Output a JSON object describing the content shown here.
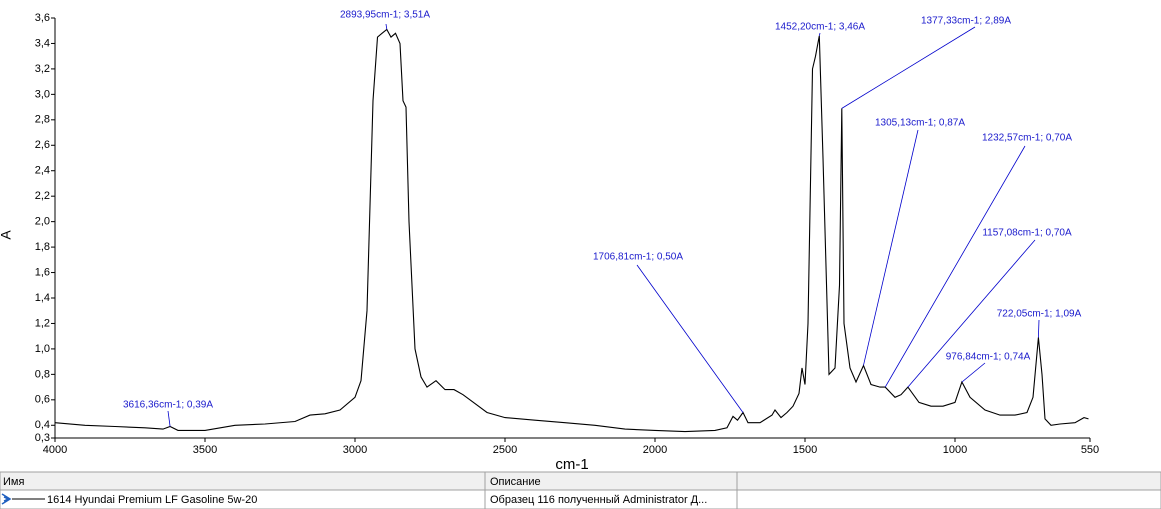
{
  "chart_data": {
    "type": "line",
    "xlabel": "cm-1",
    "ylabel": "A",
    "xlim": [
      4000,
      550
    ],
    "ylim": [
      0.3,
      3.6
    ],
    "xticks": [
      4000,
      3500,
      3000,
      2500,
      2000,
      1500,
      1000,
      550
    ],
    "yticks": [
      {
        "value": 0.3,
        "label": "0,3"
      },
      {
        "value": 0.4,
        "label": "0,4"
      },
      {
        "value": 0.6,
        "label": "0,6"
      },
      {
        "value": 0.8,
        "label": "0,8"
      },
      {
        "value": 1.0,
        "label": "1,0"
      },
      {
        "value": 1.2,
        "label": "1,2"
      },
      {
        "value": 1.4,
        "label": "1,4"
      },
      {
        "value": 1.6,
        "label": "1,6"
      },
      {
        "value": 1.8,
        "label": "1,8"
      },
      {
        "value": 2.0,
        "label": "2,0"
      },
      {
        "value": 2.2,
        "label": "2,2"
      },
      {
        "value": 2.4,
        "label": "2,4"
      },
      {
        "value": 2.6,
        "label": "2,6"
      },
      {
        "value": 2.8,
        "label": "2,8"
      },
      {
        "value": 3.0,
        "label": "3,0"
      },
      {
        "value": 3.2,
        "label": "3,2"
      },
      {
        "value": 3.4,
        "label": "3,4"
      },
      {
        "value": 3.6,
        "label": "3,6"
      }
    ],
    "x": [
      4000,
      3900,
      3800,
      3700,
      3640,
      3616.36,
      3590,
      3500,
      3400,
      3300,
      3200,
      3150,
      3100,
      3050,
      3000,
      2980,
      2960,
      2940,
      2925,
      2910,
      2893.95,
      2880,
      2865,
      2850,
      2840,
      2830,
      2820,
      2800,
      2780,
      2760,
      2730,
      2700,
      2670,
      2640,
      2600,
      2560,
      2500,
      2400,
      2300,
      2200,
      2100,
      2000,
      1900,
      1800,
      1760,
      1740,
      1725,
      1706.81,
      1690,
      1650,
      1610,
      1600,
      1580,
      1560,
      1540,
      1520,
      1510,
      1500,
      1490,
      1475,
      1465,
      1452.2,
      1440,
      1420,
      1400,
      1385,
      1377.33,
      1370,
      1350,
      1330,
      1305.13,
      1280,
      1250,
      1232.57,
      1200,
      1180,
      1157.08,
      1120,
      1080,
      1040,
      1000,
      976.84,
      950,
      900,
      850,
      800,
      760,
      740,
      722.05,
      710,
      700,
      680,
      650,
      600,
      570,
      555
    ],
    "series": [
      {
        "name": "1614 Hyundai Premium LF Gasoline 5w-20",
        "color": "#000000",
        "values": [
          0.42,
          0.4,
          0.39,
          0.38,
          0.37,
          0.39,
          0.36,
          0.36,
          0.4,
          0.41,
          0.43,
          0.48,
          0.49,
          0.52,
          0.62,
          0.75,
          1.3,
          2.95,
          3.45,
          3.48,
          3.51,
          3.45,
          3.48,
          3.4,
          2.95,
          2.9,
          2.0,
          1.0,
          0.78,
          0.7,
          0.75,
          0.68,
          0.68,
          0.64,
          0.57,
          0.5,
          0.46,
          0.44,
          0.42,
          0.4,
          0.37,
          0.36,
          0.35,
          0.36,
          0.38,
          0.47,
          0.44,
          0.5,
          0.42,
          0.42,
          0.48,
          0.52,
          0.46,
          0.5,
          0.55,
          0.65,
          0.85,
          0.72,
          1.2,
          3.2,
          3.3,
          3.46,
          2.5,
          0.8,
          0.85,
          1.5,
          2.89,
          1.2,
          0.85,
          0.74,
          0.87,
          0.72,
          0.7,
          0.7,
          0.62,
          0.64,
          0.7,
          0.58,
          0.55,
          0.55,
          0.58,
          0.74,
          0.62,
          0.52,
          0.48,
          0.48,
          0.5,
          0.62,
          1.09,
          0.8,
          0.45,
          0.4,
          0.41,
          0.42,
          0.46,
          0.45
        ]
      }
    ],
    "annotations": [
      {
        "text": "2893,95cm-1; 3,51A",
        "x": 2893.95,
        "y": 3.51
      },
      {
        "text": "1452,20cm-1; 3,46A",
        "x": 1452.2,
        "y": 3.46
      },
      {
        "text": "1377,33cm-1; 2,89A",
        "x": 1377.33,
        "y": 2.89
      },
      {
        "text": "1305,13cm-1; 0,87A",
        "x": 1305.13,
        "y": 0.87
      },
      {
        "text": "1232,57cm-1; 0,70A",
        "x": 1232.57,
        "y": 0.7
      },
      {
        "text": "1157,08cm-1; 0,70A",
        "x": 1157.08,
        "y": 0.7
      },
      {
        "text": "722,05cm-1; 1,09A",
        "x": 722.05,
        "y": 1.09
      },
      {
        "text": "976,84cm-1; 0,74A",
        "x": 976.84,
        "y": 0.74
      },
      {
        "text": "1706,81cm-1; 0,50A",
        "x": 1706.81,
        "y": 0.5
      },
      {
        "text": "3616,36cm-1; 0,39A",
        "x": 3616.36,
        "y": 0.39
      }
    ]
  },
  "table": {
    "headers": [
      "Имя",
      "Описание"
    ],
    "description": "Образец 116 полученный Administrator Д..."
  }
}
